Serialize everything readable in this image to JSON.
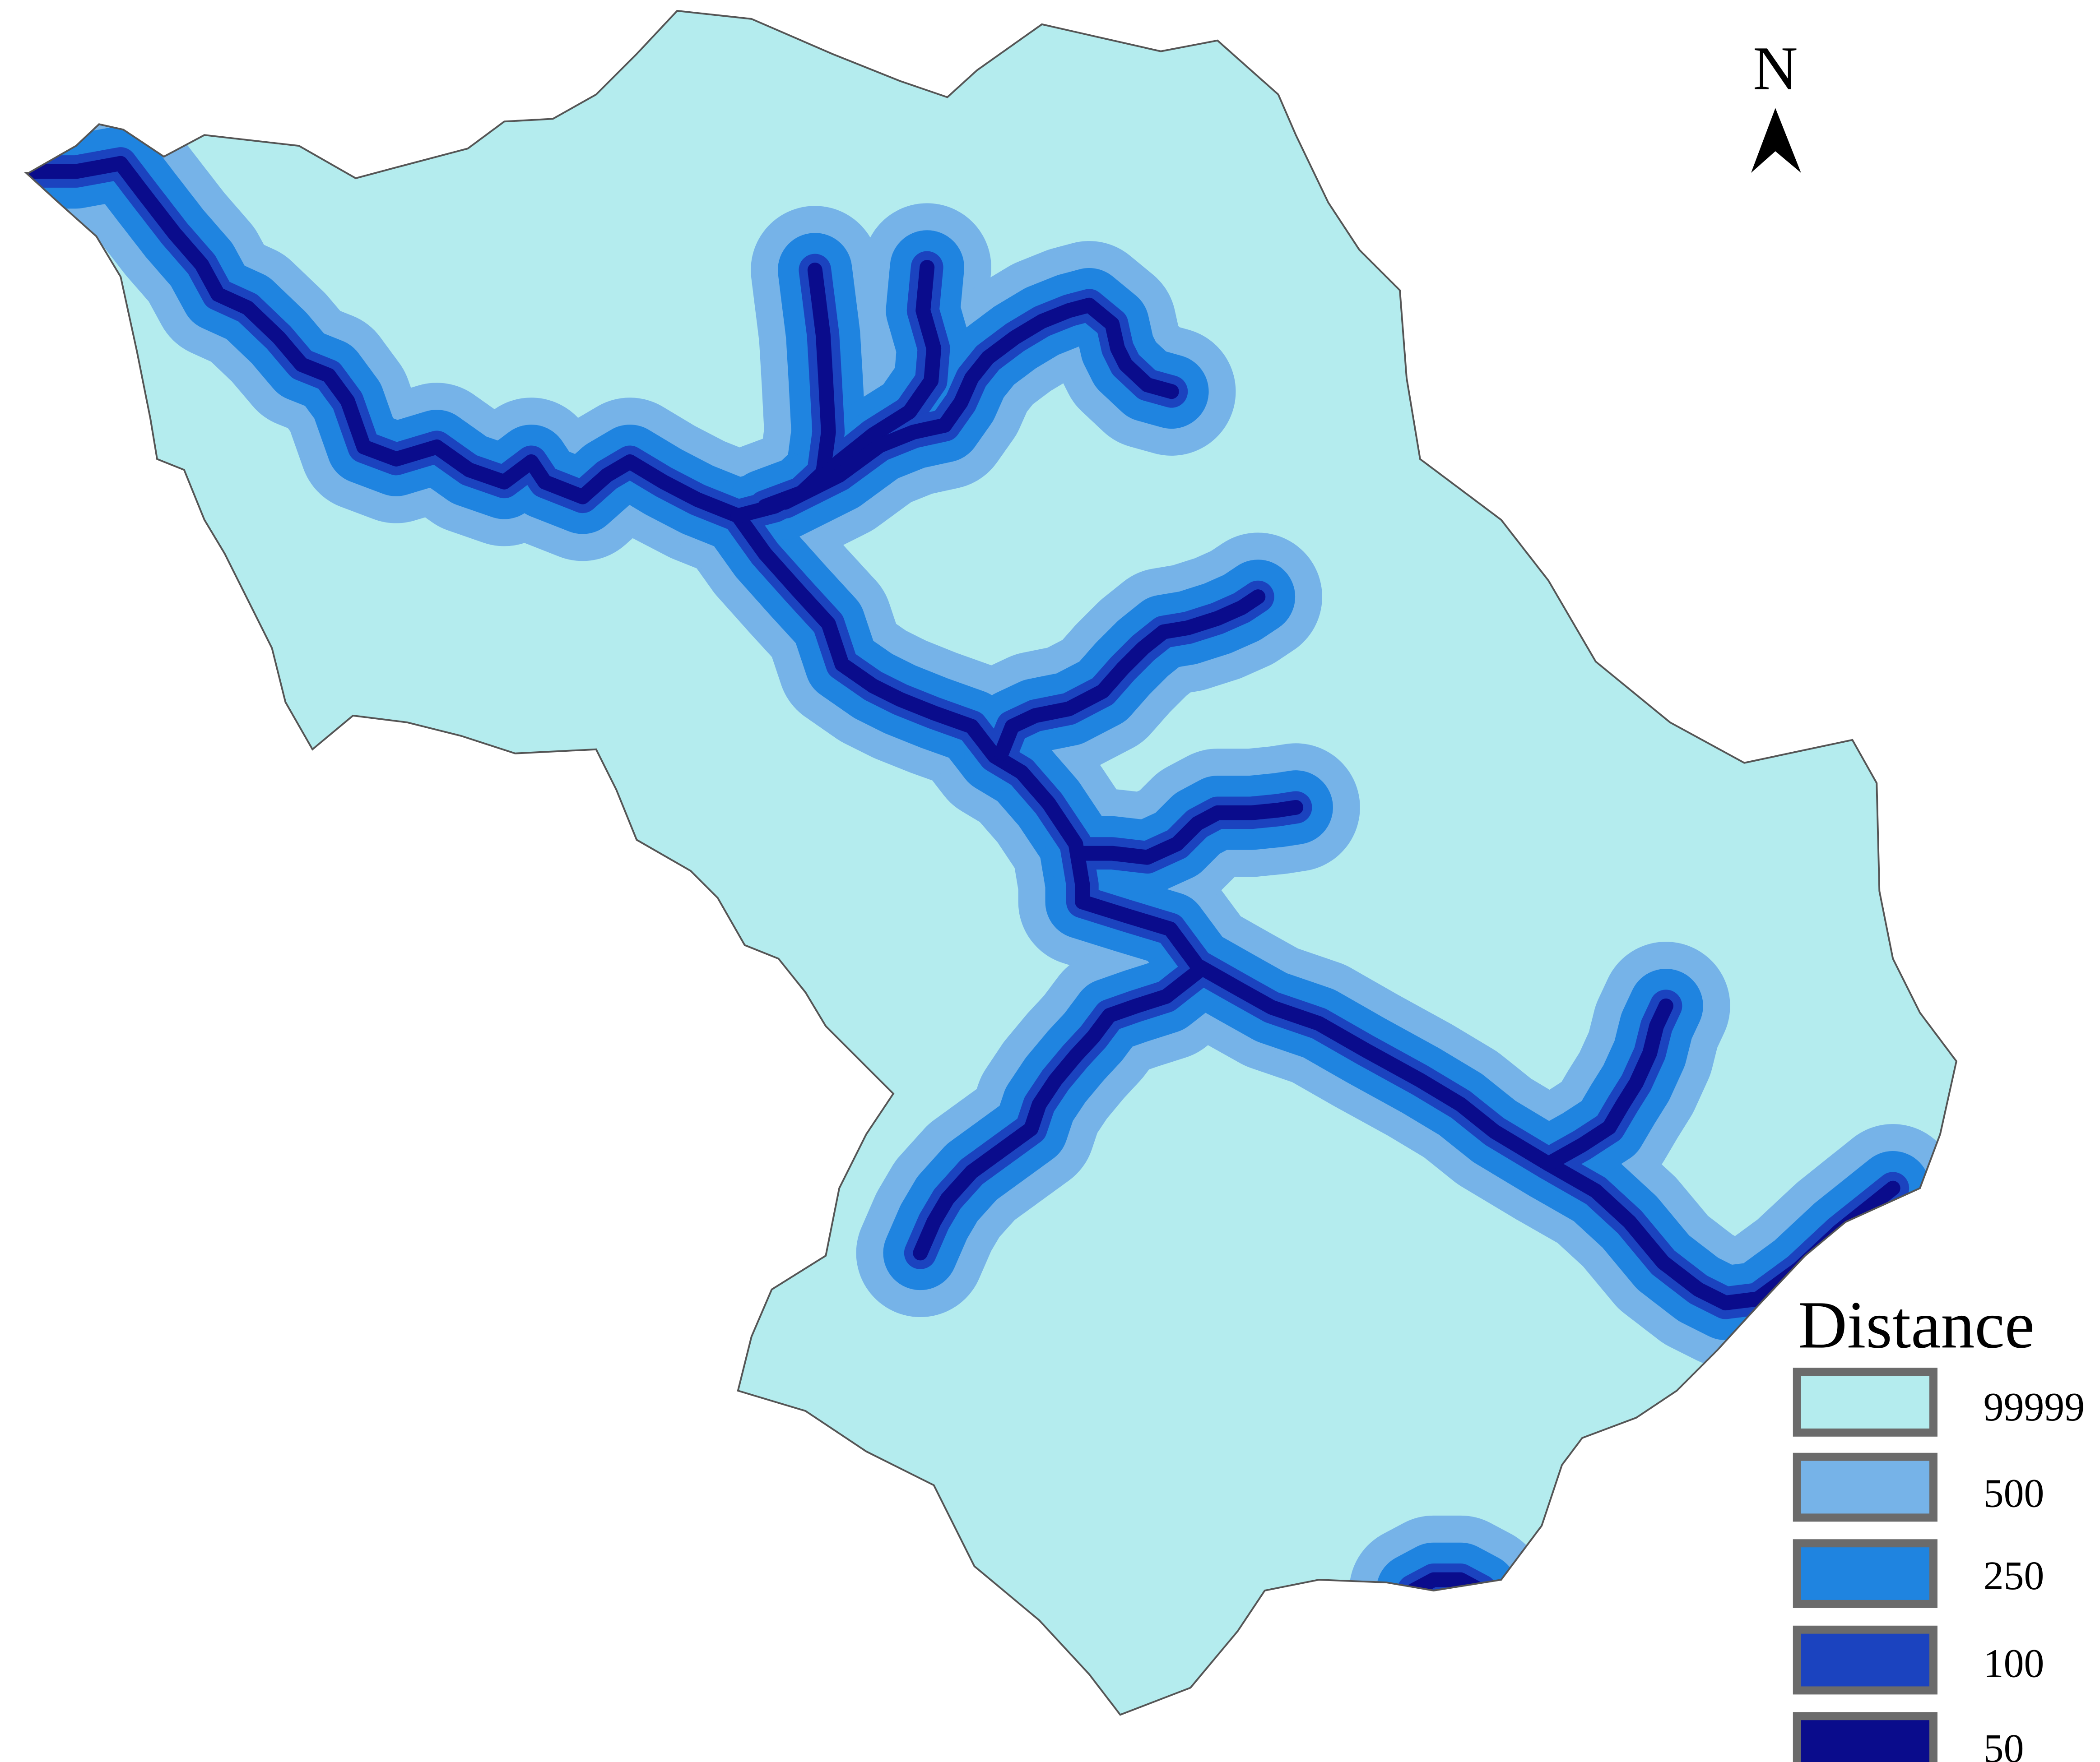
{
  "north_arrow": {
    "label": "N"
  },
  "legend": {
    "title": "Distance",
    "items": [
      {
        "label": "99999",
        "color": "#b4ecee"
      },
      {
        "label": "500",
        "color": "#76b3e8"
      },
      {
        "label": "250",
        "color": "#1f84e0"
      },
      {
        "label": "100",
        "color": "#1b43bf"
      },
      {
        "label": "50",
        "color": "#0a0c8c"
      }
    ]
  },
  "colors": {
    "outside": "#ffffff",
    "basin_outline": "#555555",
    "north_arrow": "#000000"
  }
}
